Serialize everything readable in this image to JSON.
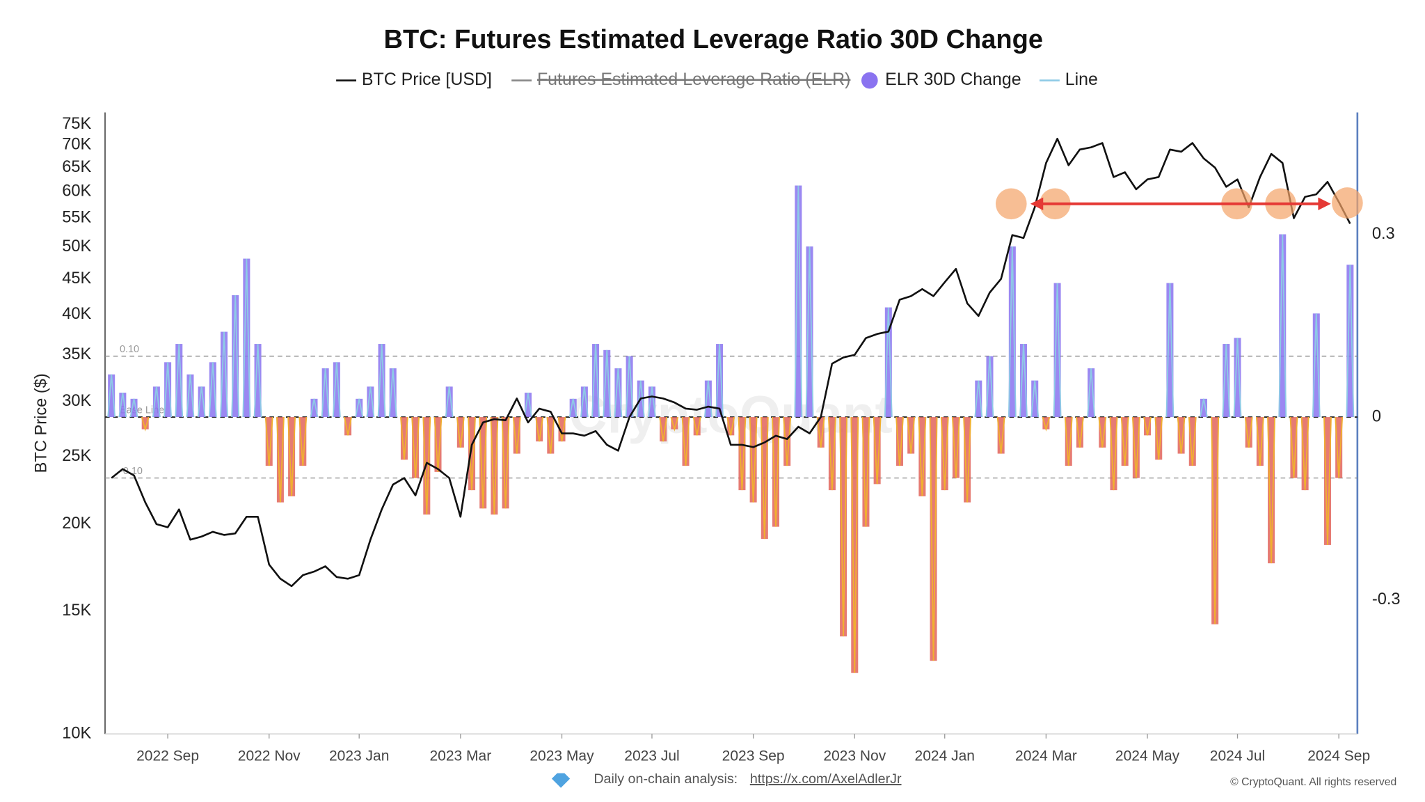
{
  "chart_data": {
    "type": "combo",
    "title": "BTC: Futures Estimated Leverage Ratio 30D Change",
    "y_label": "BTC Price ($)",
    "watermark": "CryptoQuant",
    "log_y": true,
    "categories": [
      null,
      null,
      null,
      null,
      null,
      "2022 Sep",
      null,
      null,
      null,
      null,
      null,
      null,
      null,
      null,
      "2022 Nov",
      null,
      null,
      null,
      null,
      null,
      null,
      null,
      "2023 Jan",
      null,
      null,
      null,
      null,
      null,
      null,
      null,
      null,
      "2023 Mar",
      null,
      null,
      null,
      null,
      null,
      null,
      null,
      null,
      "2023 May",
      null,
      null,
      null,
      null,
      null,
      null,
      null,
      "2023 Jul",
      null,
      null,
      null,
      null,
      null,
      null,
      null,
      null,
      "2023 Sep",
      null,
      null,
      null,
      null,
      null,
      null,
      null,
      null,
      "2023 Nov",
      null,
      null,
      null,
      null,
      null,
      null,
      null,
      "2024 Jan",
      null,
      null,
      null,
      null,
      null,
      null,
      null,
      null,
      "2024 Mar",
      null,
      null,
      null,
      null,
      null,
      null,
      null,
      null,
      "2024 May",
      null,
      null,
      null,
      null,
      null,
      null,
      null,
      "2024 Jul",
      null,
      null,
      null,
      null,
      null,
      null,
      null,
      null,
      "2024 Sep",
      null
    ],
    "series": [
      {
        "name": "BTC Price [USD]",
        "color": "#111111",
        "axis": "y",
        "values": [
          23300,
          24000,
          23500,
          21500,
          20000,
          19800,
          21000,
          19000,
          19200,
          19500,
          19300,
          19400,
          20500,
          20500,
          17500,
          16700,
          16300,
          16900,
          17100,
          17400,
          16800,
          16700,
          16900,
          19000,
          21000,
          22800,
          23300,
          22000,
          24500,
          24000,
          23300,
          20500,
          26000,
          28000,
          28300,
          28200,
          30300,
          28000,
          29300,
          29000,
          27000,
          27000,
          26800,
          27200,
          26000,
          25500,
          28500,
          30300,
          30500,
          30300,
          29900,
          29300,
          29200,
          29500,
          29300,
          26000,
          26000,
          25800,
          26200,
          26800,
          26500,
          27600,
          27000,
          28500,
          34000,
          34700,
          35000,
          37000,
          37500,
          37800,
          42000,
          42500,
          43500,
          42500,
          44500,
          46500,
          41500,
          39800,
          43000,
          45000,
          52000,
          51500,
          57000,
          66000,
          71500,
          65500,
          69000,
          69500,
          70500,
          63000,
          64000,
          60500,
          62500,
          63000,
          69000,
          68500,
          70500,
          67000,
          65000,
          61000,
          62500,
          57000,
          63000,
          68000,
          66000,
          55000,
          59000,
          59500,
          62000,
          58000,
          54000
        ]
      },
      {
        "name": "Futures Estimated Leverage Ratio (ELR)",
        "color": "#888888",
        "hidden": true
      },
      {
        "name": "ELR 30D Change",
        "color": "#8a73f0",
        "negative_color": "#e2645a",
        "axis": "y2",
        "kind": "bar",
        "values": [
          0.07,
          0.04,
          0.03,
          -0.02,
          0.05,
          0.09,
          0.12,
          0.07,
          0.05,
          0.09,
          0.14,
          0.2,
          0.26,
          0.12,
          -0.08,
          -0.14,
          -0.13,
          -0.08,
          0.03,
          0.08,
          0.09,
          -0.03,
          0.03,
          0.05,
          0.12,
          0.08,
          -0.07,
          -0.1,
          -0.16,
          -0.09,
          0.05,
          -0.05,
          -0.12,
          -0.15,
          -0.16,
          -0.15,
          -0.06,
          0.04,
          -0.04,
          -0.06,
          -0.04,
          0.03,
          0.05,
          0.12,
          0.11,
          0.08,
          0.1,
          0.06,
          0.05,
          -0.04,
          -0.02,
          -0.08,
          -0.03,
          0.06,
          0.12,
          -0.03,
          -0.12,
          -0.14,
          -0.2,
          -0.18,
          -0.08,
          0.38,
          0.28,
          -0.05,
          -0.12,
          -0.36,
          -0.42,
          -0.18,
          -0.11,
          0.18,
          -0.08,
          -0.06,
          -0.13,
          -0.4,
          -0.12,
          -0.1,
          -0.14,
          0.06,
          0.1,
          -0.06,
          0.28,
          0.12,
          0.06,
          -0.02,
          0.22,
          -0.08,
          -0.05,
          0.08,
          -0.05,
          -0.12,
          -0.08,
          -0.1,
          -0.03,
          -0.07,
          0.22,
          -0.06,
          -0.08,
          0.03,
          -0.34,
          0.12,
          0.13,
          -0.05,
          -0.08,
          -0.24,
          0.3,
          -0.1,
          -0.12,
          0.17,
          -0.21,
          -0.1,
          0.25
        ]
      },
      {
        "name": "Line",
        "color": "#8ecae6",
        "negative_color": "#f0b030",
        "kind": "line"
      }
    ],
    "ylim": [
      10000,
      78000
    ],
    "yticks": [
      {
        "value": 10000,
        "label": "10K"
      },
      {
        "value": 15000,
        "label": "15K"
      },
      {
        "value": 20000,
        "label": "20K"
      },
      {
        "value": 25000,
        "label": "25K"
      },
      {
        "value": 30000,
        "label": "30K"
      },
      {
        "value": 35000,
        "label": "35K"
      },
      {
        "value": 40000,
        "label": "40K"
      },
      {
        "value": 45000,
        "label": "45K"
      },
      {
        "value": 50000,
        "label": "50K"
      },
      {
        "value": 55000,
        "label": "55K"
      },
      {
        "value": 60000,
        "label": "60K"
      },
      {
        "value": 65000,
        "label": "65K"
      },
      {
        "value": 70000,
        "label": "70K"
      },
      {
        "value": 75000,
        "label": "75K"
      }
    ],
    "y2lim": [
      -0.52,
      0.5
    ],
    "y2ticks": [
      -0.3,
      0,
      0.3
    ],
    "reference_lines": [
      {
        "value": 0.1,
        "label": "0.10"
      },
      {
        "value": 0,
        "label": "Base Line"
      },
      {
        "value": -0.1,
        "label": "-0.10"
      }
    ]
  },
  "footer": {
    "text": "Daily on-chain analysis:",
    "link": "https://x.com/AxelAdlerJr",
    "copyright": "© CryptoQuant. All rights reserved"
  }
}
